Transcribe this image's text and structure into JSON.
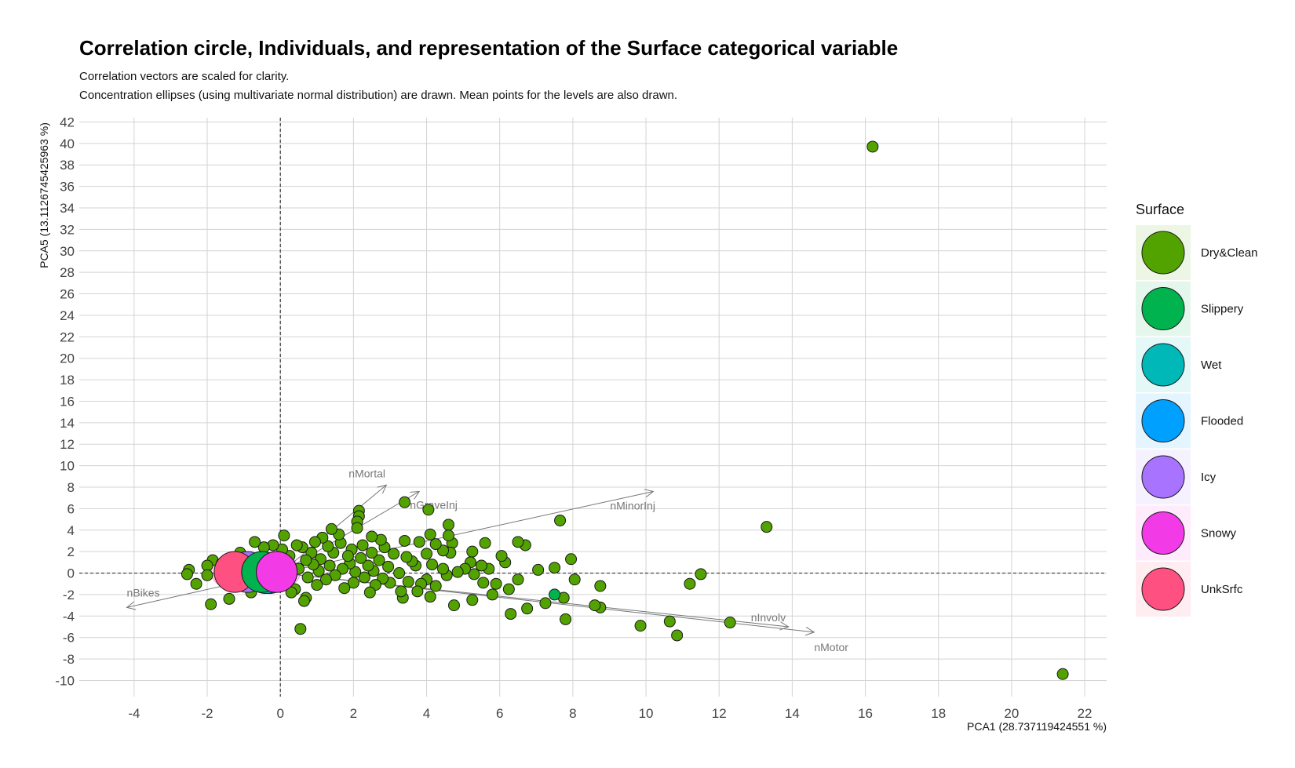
{
  "chart_data": {
    "type": "scatter",
    "title": "Correlation circle, Individuals, and representation of the Surface categorical variable",
    "subtitle_lines": [
      "Correlation vectors are scaled for clarity.",
      "Concentration ellipses (using multivariate normal distribution) are drawn. Mean points for the levels are also drawn."
    ],
    "xlabel": "PCA1 (28.737119424551 %)",
    "ylabel": "PCA5 (13.1126745425963 %)",
    "xlim": [
      -5.5,
      22.6
    ],
    "ylim": [
      -11.5,
      42.4
    ],
    "x_ticks": [
      -4,
      -2,
      0,
      2,
      4,
      6,
      8,
      10,
      12,
      14,
      16,
      18,
      20,
      22
    ],
    "y_ticks": [
      -10,
      -8,
      -6,
      -4,
      -2,
      0,
      2,
      4,
      6,
      8,
      10,
      12,
      14,
      16,
      18,
      20,
      22,
      24,
      26,
      28,
      30,
      32,
      34,
      36,
      38,
      40,
      42
    ],
    "grid": true,
    "legend": {
      "title": "Surface",
      "position": "right",
      "entries": [
        {
          "name": "Dry&Clean",
          "color": "#53A300"
        },
        {
          "name": "Slippery",
          "color": "#00B34F"
        },
        {
          "name": "Wet",
          "color": "#00B8B8"
        },
        {
          "name": "Flooded",
          "color": "#00A0FF"
        },
        {
          "name": "Icy",
          "color": "#A873FF"
        },
        {
          "name": "Snowy",
          "color": "#F23AE6"
        },
        {
          "name": "UnkSrfc",
          "color": "#FF5082"
        }
      ]
    },
    "vectors": [
      {
        "name": "nMortal",
        "x": 2.9,
        "y": 8.2
      },
      {
        "name": "nGraveInj",
        "x": 3.8,
        "y": 7.6
      },
      {
        "name": "nMinorInj",
        "x": 10.2,
        "y": 7.6
      },
      {
        "name": "nBikes",
        "x": -4.2,
        "y": -3.2
      },
      {
        "name": "nInvolv",
        "x": 13.9,
        "y": -5.0
      },
      {
        "name": "nMotor",
        "x": 14.6,
        "y": -5.5
      }
    ],
    "level_means": [
      {
        "name": "Icy",
        "x": -0.9,
        "y": 0.1
      },
      {
        "name": "UnkSrfc",
        "x": -1.25,
        "y": 0.1
      },
      {
        "name": "Snowy",
        "x": -0.1,
        "y": 0.1
      },
      {
        "name": "Flooded",
        "x": -0.3,
        "y": 0.0
      },
      {
        "name": "Wet",
        "x": -0.4,
        "y": 0.0
      },
      {
        "name": "Slippery",
        "x": -0.5,
        "y": 0.1
      }
    ],
    "points": [
      {
        "surface": "Dry&Clean",
        "x": 16.2,
        "y": 39.7
      },
      {
        "surface": "Dry&Clean",
        "x": 21.4,
        "y": -9.4
      },
      {
        "surface": "Dry&Clean",
        "x": 13.3,
        "y": 4.3
      },
      {
        "surface": "Dry&Clean",
        "x": 12.3,
        "y": -4.6
      },
      {
        "surface": "Dry&Clean",
        "x": 11.5,
        "y": -0.1
      },
      {
        "surface": "Dry&Clean",
        "x": 11.2,
        "y": -1.0
      },
      {
        "surface": "Dry&Clean",
        "x": 10.85,
        "y": -5.8
      },
      {
        "surface": "Dry&Clean",
        "x": 10.65,
        "y": -4.5
      },
      {
        "surface": "Dry&Clean",
        "x": 9.85,
        "y": -4.9
      },
      {
        "surface": "Dry&Clean",
        "x": 8.75,
        "y": -1.2
      },
      {
        "surface": "Dry&Clean",
        "x": 8.75,
        "y": -3.2
      },
      {
        "surface": "Dry&Clean",
        "x": 8.6,
        "y": -3.0
      },
      {
        "surface": "Dry&Clean",
        "x": 8.05,
        "y": -0.6
      },
      {
        "surface": "Dry&Clean",
        "x": 7.95,
        "y": 1.3
      },
      {
        "surface": "Dry&Clean",
        "x": 7.8,
        "y": -4.3
      },
      {
        "surface": "Dry&Clean",
        "x": 7.75,
        "y": -2.3
      },
      {
        "surface": "Dry&Clean",
        "x": 7.65,
        "y": 4.9
      },
      {
        "surface": "Slippery",
        "x": 7.5,
        "y": -2.0
      },
      {
        "surface": "Dry&Clean",
        "x": 7.5,
        "y": 0.5
      },
      {
        "surface": "Dry&Clean",
        "x": 7.25,
        "y": -2.8
      },
      {
        "surface": "Dry&Clean",
        "x": 7.05,
        "y": 0.3
      },
      {
        "surface": "Dry&Clean",
        "x": 6.75,
        "y": -3.3
      },
      {
        "surface": "Dry&Clean",
        "x": 6.7,
        "y": 2.6
      },
      {
        "surface": "Dry&Clean",
        "x": 6.5,
        "y": 2.9
      },
      {
        "surface": "Dry&Clean",
        "x": 6.5,
        "y": -0.6
      },
      {
        "surface": "Dry&Clean",
        "x": 6.3,
        "y": -3.8
      },
      {
        "surface": "Dry&Clean",
        "x": 6.25,
        "y": -1.5
      },
      {
        "surface": "Dry&Clean",
        "x": 6.15,
        "y": 1.0
      },
      {
        "surface": "Dry&Clean",
        "x": 6.05,
        "y": 1.6
      },
      {
        "surface": "Dry&Clean",
        "x": 5.9,
        "y": -1.0
      },
      {
        "surface": "Dry&Clean",
        "x": 5.8,
        "y": -2.0
      },
      {
        "surface": "Dry&Clean",
        "x": 5.7,
        "y": 0.4
      },
      {
        "surface": "Dry&Clean",
        "x": 5.6,
        "y": 2.8
      },
      {
        "surface": "Dry&Clean",
        "x": 5.55,
        "y": -0.9
      },
      {
        "surface": "Dry&Clean",
        "x": 5.5,
        "y": 0.7
      },
      {
        "surface": "Dry&Clean",
        "x": 5.3,
        "y": -0.1
      },
      {
        "surface": "Dry&Clean",
        "x": 5.25,
        "y": 2.0
      },
      {
        "surface": "Dry&Clean",
        "x": 5.25,
        "y": -2.5
      },
      {
        "surface": "Dry&Clean",
        "x": 5.2,
        "y": 1.0
      },
      {
        "surface": "Dry&Clean",
        "x": 5.05,
        "y": 0.4
      },
      {
        "surface": "Dry&Clean",
        "x": 4.85,
        "y": 0.1
      },
      {
        "surface": "Dry&Clean",
        "x": 4.75,
        "y": -3.0
      },
      {
        "surface": "Dry&Clean",
        "x": 4.7,
        "y": 2.8
      },
      {
        "surface": "Dry&Clean",
        "x": 4.65,
        "y": 1.9
      },
      {
        "surface": "Dry&Clean",
        "x": 4.6,
        "y": 4.5
      },
      {
        "surface": "Dry&Clean",
        "x": 4.6,
        "y": 3.5
      },
      {
        "surface": "Dry&Clean",
        "x": 4.55,
        "y": -0.2
      },
      {
        "surface": "Dry&Clean",
        "x": 4.45,
        "y": 2.1
      },
      {
        "surface": "Dry&Clean",
        "x": 4.45,
        "y": 0.4
      },
      {
        "surface": "Dry&Clean",
        "x": 4.25,
        "y": 2.7
      },
      {
        "surface": "Dry&Clean",
        "x": 4.25,
        "y": -1.2
      },
      {
        "surface": "Dry&Clean",
        "x": 4.15,
        "y": 0.8
      },
      {
        "surface": "Dry&Clean",
        "x": 4.1,
        "y": 3.6
      },
      {
        "surface": "Dry&Clean",
        "x": 4.1,
        "y": -2.2
      },
      {
        "surface": "Dry&Clean",
        "x": 4.05,
        "y": 5.9
      },
      {
        "surface": "Dry&Clean",
        "x": 4.0,
        "y": 1.8
      },
      {
        "surface": "Dry&Clean",
        "x": 4.0,
        "y": -0.6
      },
      {
        "surface": "Dry&Clean",
        "x": 3.85,
        "y": -1.0
      },
      {
        "surface": "Dry&Clean",
        "x": 3.8,
        "y": 2.9
      },
      {
        "surface": "Dry&Clean",
        "x": 3.75,
        "y": -1.7
      },
      {
        "surface": "Dry&Clean",
        "x": 3.7,
        "y": 0.7
      },
      {
        "surface": "Dry&Clean",
        "x": 3.6,
        "y": 1.1
      },
      {
        "surface": "Dry&Clean",
        "x": 3.5,
        "y": -0.8
      },
      {
        "surface": "Dry&Clean",
        "x": 3.45,
        "y": 1.5
      },
      {
        "surface": "Dry&Clean",
        "x": 3.4,
        "y": 6.6
      },
      {
        "surface": "Dry&Clean",
        "x": 3.4,
        "y": 3.0
      },
      {
        "surface": "Dry&Clean",
        "x": 3.35,
        "y": -2.3
      },
      {
        "surface": "Dry&Clean",
        "x": 3.3,
        "y": -1.7
      },
      {
        "surface": "Dry&Clean",
        "x": 3.25,
        "y": 0.0
      },
      {
        "surface": "Dry&Clean",
        "x": 3.1,
        "y": 1.8
      },
      {
        "surface": "Dry&Clean",
        "x": 3.0,
        "y": -0.9
      },
      {
        "surface": "Dry&Clean",
        "x": 2.95,
        "y": 0.6
      },
      {
        "surface": "Dry&Clean",
        "x": 2.85,
        "y": 2.4
      },
      {
        "surface": "Dry&Clean",
        "x": 2.8,
        "y": -0.5
      },
      {
        "surface": "Dry&Clean",
        "x": 2.75,
        "y": 3.1
      },
      {
        "surface": "Dry&Clean",
        "x": 2.7,
        "y": 1.2
      },
      {
        "surface": "Dry&Clean",
        "x": 2.6,
        "y": -1.1
      },
      {
        "surface": "Dry&Clean",
        "x": 2.55,
        "y": 0.2
      },
      {
        "surface": "Dry&Clean",
        "x": 2.5,
        "y": 3.4
      },
      {
        "surface": "Dry&Clean",
        "x": 2.5,
        "y": 1.9
      },
      {
        "surface": "Dry&Clean",
        "x": 2.45,
        "y": -1.8
      },
      {
        "surface": "Dry&Clean",
        "x": 2.4,
        "y": 0.7
      },
      {
        "surface": "Dry&Clean",
        "x": 2.3,
        "y": -0.4
      },
      {
        "surface": "Dry&Clean",
        "x": 2.25,
        "y": 2.6
      },
      {
        "surface": "Dry&Clean",
        "x": 2.2,
        "y": 1.4
      },
      {
        "surface": "Dry&Clean",
        "x": 2.15,
        "y": 5.8
      },
      {
        "surface": "Dry&Clean",
        "x": 2.15,
        "y": 5.3
      },
      {
        "surface": "Dry&Clean",
        "x": 2.1,
        "y": 4.8
      },
      {
        "surface": "Dry&Clean",
        "x": 2.1,
        "y": 4.2
      },
      {
        "surface": "Dry&Clean",
        "x": 2.05,
        "y": 0.1
      },
      {
        "surface": "Dry&Clean",
        "x": 2.0,
        "y": -0.9
      },
      {
        "surface": "Dry&Clean",
        "x": 1.95,
        "y": 2.2
      },
      {
        "surface": "Dry&Clean",
        "x": 1.9,
        "y": 0.9
      },
      {
        "surface": "Dry&Clean",
        "x": 1.85,
        "y": 1.6
      },
      {
        "surface": "Dry&Clean",
        "x": 1.75,
        "y": -1.4
      },
      {
        "surface": "Dry&Clean",
        "x": 1.7,
        "y": 0.4
      },
      {
        "surface": "Dry&Clean",
        "x": 1.65,
        "y": 2.8
      },
      {
        "surface": "Dry&Clean",
        "x": 1.6,
        "y": 3.6
      },
      {
        "surface": "Dry&Clean",
        "x": 1.5,
        "y": -0.2
      },
      {
        "surface": "Dry&Clean",
        "x": 1.45,
        "y": 1.9
      },
      {
        "surface": "Dry&Clean",
        "x": 1.4,
        "y": 4.1
      },
      {
        "surface": "Dry&Clean",
        "x": 1.35,
        "y": 0.7
      },
      {
        "surface": "Dry&Clean",
        "x": 1.3,
        "y": 2.5
      },
      {
        "surface": "Dry&Clean",
        "x": 1.25,
        "y": -0.6
      },
      {
        "surface": "Dry&Clean",
        "x": 1.15,
        "y": 3.3
      },
      {
        "surface": "Dry&Clean",
        "x": 1.1,
        "y": 1.3
      },
      {
        "surface": "Dry&Clean",
        "x": 1.05,
        "y": 0.2
      },
      {
        "surface": "Dry&Clean",
        "x": 1.0,
        "y": -1.1
      },
      {
        "surface": "Dry&Clean",
        "x": 0.95,
        "y": 2.9
      },
      {
        "surface": "Dry&Clean",
        "x": 0.9,
        "y": 0.8
      },
      {
        "surface": "Dry&Clean",
        "x": 0.85,
        "y": 1.9
      },
      {
        "surface": "Dry&Clean",
        "x": 0.75,
        "y": -0.4
      },
      {
        "surface": "Dry&Clean",
        "x": 0.7,
        "y": 1.2
      },
      {
        "surface": "Dry&Clean",
        "x": 0.7,
        "y": -2.3
      },
      {
        "surface": "Dry&Clean",
        "x": 0.65,
        "y": -2.6
      },
      {
        "surface": "Dry&Clean",
        "x": 0.6,
        "y": 2.4
      },
      {
        "surface": "Dry&Clean",
        "x": 0.55,
        "y": -5.2
      },
      {
        "surface": "Dry&Clean",
        "x": 0.5,
        "y": 0.4
      },
      {
        "surface": "Dry&Clean",
        "x": 0.45,
        "y": 2.6
      },
      {
        "surface": "Dry&Clean",
        "x": 0.4,
        "y": -1.5
      },
      {
        "surface": "Dry&Clean",
        "x": 0.3,
        "y": -1.8
      },
      {
        "surface": "Dry&Clean",
        "x": 0.25,
        "y": 1.6
      },
      {
        "surface": "Dry&Clean",
        "x": 0.1,
        "y": 3.5
      },
      {
        "surface": "Dry&Clean",
        "x": 0.05,
        "y": 2.2
      },
      {
        "surface": "Dry&Clean",
        "x": -0.2,
        "y": 2.6
      },
      {
        "surface": "Dry&Clean",
        "x": -0.45,
        "y": 2.4
      },
      {
        "surface": "Dry&Clean",
        "x": -0.7,
        "y": 2.9
      },
      {
        "surface": "Dry&Clean",
        "x": -0.8,
        "y": -1.8
      },
      {
        "surface": "Dry&Clean",
        "x": -1.4,
        "y": -2.4
      },
      {
        "surface": "Dry&Clean",
        "x": -1.85,
        "y": 1.2
      },
      {
        "surface": "Dry&Clean",
        "x": -1.9,
        "y": -2.9
      },
      {
        "surface": "Dry&Clean",
        "x": -2.0,
        "y": 0.7
      },
      {
        "surface": "Dry&Clean",
        "x": -2.0,
        "y": -0.2
      },
      {
        "surface": "Dry&Clean",
        "x": -2.3,
        "y": -1.0
      },
      {
        "surface": "Dry&Clean",
        "x": -2.5,
        "y": 0.3
      },
      {
        "surface": "Dry&Clean",
        "x": -2.55,
        "y": -0.1
      },
      {
        "surface": "Dry&Clean",
        "x": -1.6,
        "y": 0.9
      },
      {
        "surface": "Dry&Clean",
        "x": -1.1,
        "y": 1.9
      },
      {
        "surface": "Dry&Clean",
        "x": -0.3,
        "y": -1.0
      }
    ]
  }
}
